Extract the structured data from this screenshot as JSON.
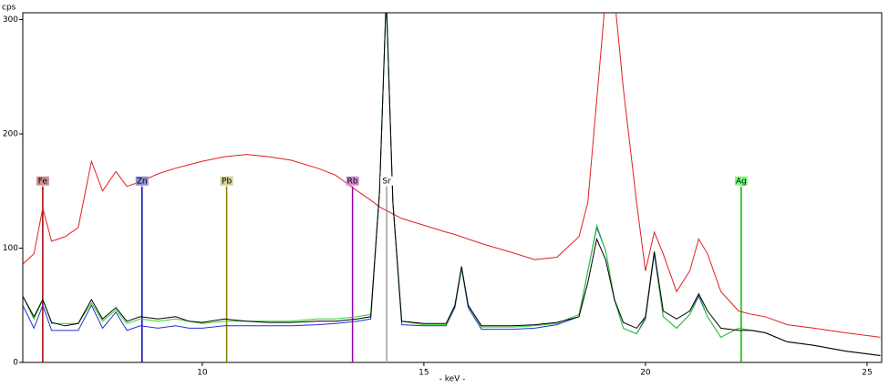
{
  "chart_data": {
    "type": "line",
    "y_label": "cps",
    "x_label": "- keV -",
    "xlim": [
      5.95,
      25.33
    ],
    "ylim": [
      0,
      306
    ],
    "xticks": [
      10,
      15,
      20,
      25
    ],
    "yticks": [
      0,
      100,
      200,
      300
    ],
    "x": [
      5.95,
      6.2,
      6.4,
      6.6,
      6.9,
      7.2,
      7.5,
      7.75,
      8.05,
      8.3,
      8.6,
      9.0,
      9.4,
      9.7,
      10.0,
      10.5,
      11.0,
      11.5,
      12.0,
      12.6,
      13.0,
      13.5,
      13.8,
      14.0,
      14.15,
      14.3,
      14.5,
      15.0,
      15.5,
      15.7,
      15.85,
      16.0,
      16.3,
      17.0,
      17.5,
      18.0,
      18.5,
      18.7,
      18.9,
      19.1,
      19.3,
      19.5,
      19.8,
      20.0,
      20.2,
      20.4,
      20.7,
      21.0,
      21.2,
      21.4,
      21.7,
      22.1,
      22.4,
      22.7,
      23.2,
      23.8,
      24.5,
      25.3
    ],
    "series": [
      {
        "color": "#e02020",
        "values": [
          86,
          95,
          135,
          106,
          110,
          118,
          176,
          150,
          167,
          154,
          158,
          165,
          170,
          173,
          176,
          180,
          182,
          180,
          177,
          170,
          164,
          150,
          142,
          136,
          133,
          130,
          126,
          120,
          114,
          112,
          110,
          108,
          104,
          96,
          90,
          92,
          110,
          140,
          230,
          320,
          320,
          240,
          140,
          80,
          114,
          95,
          62,
          80,
          108,
          95,
          62,
          45,
          42,
          40,
          33,
          30,
          26,
          22
        ]
      },
      {
        "color": "#2030d0",
        "values": [
          50,
          30,
          50,
          28,
          28,
          28,
          50,
          30,
          44,
          28,
          32,
          30,
          32,
          30,
          30,
          32,
          32,
          32,
          32,
          33,
          34,
          36,
          38,
          150,
          320,
          140,
          33,
          32,
          32,
          48,
          82,
          48,
          29,
          29,
          30,
          33,
          40,
          80,
          118,
          98,
          55,
          30,
          25,
          38,
          95,
          40,
          30,
          42,
          58,
          40,
          22,
          30,
          28,
          26,
          18,
          15,
          10,
          6
        ]
      },
      {
        "color": "#30d030",
        "values": [
          58,
          38,
          55,
          34,
          34,
          34,
          52,
          36,
          46,
          34,
          38,
          36,
          38,
          36,
          34,
          36,
          36,
          36,
          36,
          38,
          38,
          40,
          42,
          150,
          320,
          140,
          36,
          33,
          33,
          50,
          82,
          50,
          31,
          31,
          32,
          34,
          42,
          80,
          120,
          98,
          55,
          30,
          25,
          40,
          97,
          40,
          30,
          42,
          60,
          40,
          22,
          30,
          28,
          26,
          18,
          15,
          10,
          6
        ]
      },
      {
        "color": "#000000",
        "values": [
          58,
          40,
          55,
          35,
          32,
          34,
          55,
          38,
          48,
          36,
          40,
          38,
          40,
          36,
          35,
          38,
          36,
          35,
          35,
          36,
          36,
          38,
          40,
          150,
          320,
          140,
          36,
          34,
          34,
          50,
          84,
          50,
          32,
          32,
          33,
          35,
          40,
          70,
          108,
          90,
          55,
          35,
          30,
          40,
          97,
          45,
          38,
          45,
          60,
          45,
          30,
          28,
          28,
          26,
          18,
          15,
          10,
          6
        ]
      }
    ],
    "markers": [
      {
        "label": "Fe",
        "energy": 6.4,
        "height": 154,
        "color": "#a00000",
        "background": "#d09090"
      },
      {
        "label": "Zn",
        "energy": 8.64,
        "height": 154,
        "color": "#0000c0",
        "background": "#9090d0"
      },
      {
        "label": "Pb",
        "energy": 10.55,
        "height": 154,
        "color": "#808000",
        "background": "#d0d090"
      },
      {
        "label": "Rb",
        "energy": 13.39,
        "height": 154,
        "color": "#9000b0",
        "background": "#d090d0"
      },
      {
        "label": "Sr",
        "energy": 14.16,
        "height": 154,
        "color": "#a0a0a0",
        "background": "#ffffff"
      },
      {
        "label": "Ag",
        "energy": 22.16,
        "height": 154,
        "color": "#00c000",
        "background": "#80ff80"
      }
    ]
  }
}
